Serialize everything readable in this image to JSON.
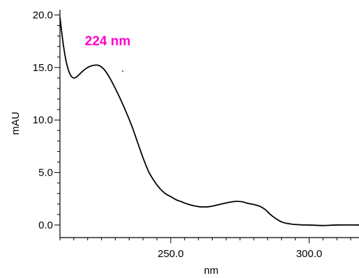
{
  "chart_data": {
    "type": "line",
    "xlabel": "nm",
    "ylabel": "mAU",
    "xlim": [
      210,
      318
    ],
    "ylim": [
      -1.2,
      20.5
    ],
    "x_ticks": [
      250,
      300
    ],
    "x_tick_labels": [
      "250.0",
      "300.0"
    ],
    "y_ticks": [
      0,
      5,
      10,
      15,
      20
    ],
    "y_tick_labels": [
      "0.0",
      "5.0",
      "10.0",
      "15.0",
      "20.0"
    ],
    "grid": false,
    "annotation": {
      "text": "224 nm",
      "x": 219,
      "y": 17.1,
      "color": "#ff00cc"
    },
    "line_color": "#000000",
    "series": [
      {
        "x": [
          210,
          211,
          212,
          213,
          214,
          215,
          216,
          218,
          220,
          222,
          224,
          226,
          228,
          230,
          232,
          234,
          236,
          238,
          240,
          242,
          244,
          246,
          248,
          250,
          252,
          254,
          256,
          258,
          260,
          262,
          264,
          266,
          268,
          270,
          272,
          274,
          276,
          278,
          280,
          282,
          284,
          286,
          288,
          290,
          292,
          294,
          296,
          298,
          300,
          305,
          310,
          318
        ],
        "y": [
          19.8,
          17.6,
          15.9,
          14.8,
          14.2,
          14.0,
          14.1,
          14.6,
          15.0,
          15.2,
          15.2,
          14.8,
          14.0,
          13.0,
          11.9,
          10.7,
          9.4,
          7.9,
          6.4,
          5.1,
          4.2,
          3.5,
          3.0,
          2.7,
          2.4,
          2.2,
          2.0,
          1.85,
          1.75,
          1.72,
          1.75,
          1.85,
          1.98,
          2.1,
          2.2,
          2.25,
          2.2,
          2.05,
          1.95,
          1.8,
          1.5,
          1.0,
          0.6,
          0.3,
          0.15,
          0.07,
          0.03,
          0.0,
          0.0,
          -0.05,
          0.0,
          0.0
        ]
      }
    ]
  }
}
